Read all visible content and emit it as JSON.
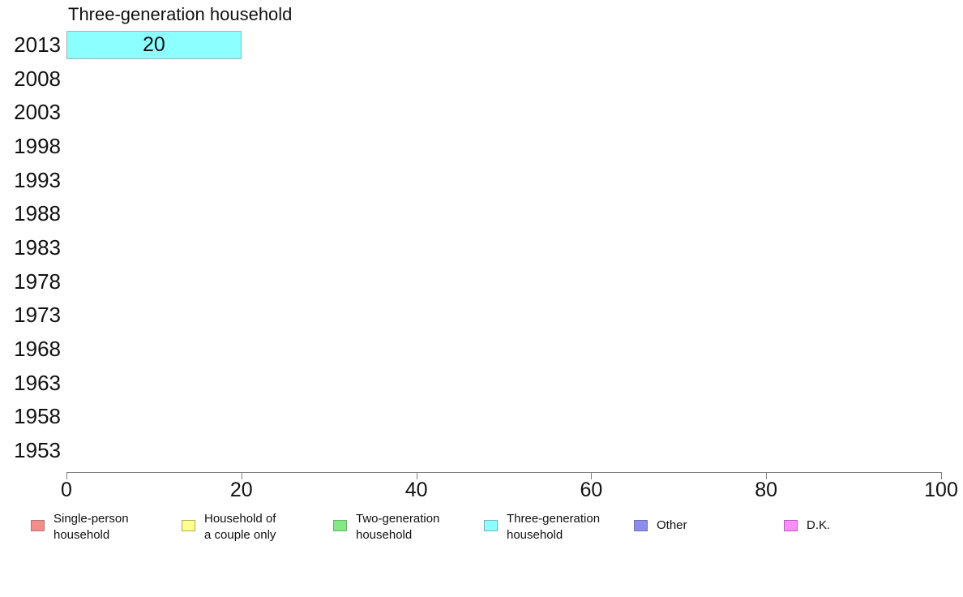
{
  "page": {
    "background": "#ffffff"
  },
  "chart_data": {
    "type": "bar",
    "orientation": "horizontal",
    "title": "Three-generation household",
    "categories": [
      "2013",
      "2008",
      "2003",
      "1998",
      "1993",
      "1988",
      "1983",
      "1978",
      "1973",
      "1968",
      "1963",
      "1958",
      "1953"
    ],
    "series": [
      {
        "name": "Three-generation household",
        "color": "#8cffff",
        "border_color": "#9fb3b6",
        "values": [
          20,
          null,
          null,
          null,
          null,
          null,
          null,
          null,
          null,
          null,
          null,
          null,
          null
        ]
      }
    ],
    "bar_value_labels": [
      "20"
    ],
    "xlabel": "",
    "ylabel": "",
    "xlim": [
      0,
      100
    ],
    "xticks": [
      0,
      20,
      40,
      60,
      80,
      100
    ],
    "xtick_labels": [
      "0",
      "20",
      "40",
      "60",
      "80",
      "100"
    ],
    "grid": false,
    "legend_position": "bottom",
    "legend": [
      {
        "label": "Single-person household",
        "lines": [
          "Single-person",
          "household"
        ],
        "fill": "#f58c8c",
        "border": "#ad7575"
      },
      {
        "label": "Household of a couple only",
        "lines": [
          "Household of",
          "a couple only"
        ],
        "fill": "#ffff8c",
        "border": "#adad62"
      },
      {
        "label": "Two-generation household",
        "lines": [
          "Two-generation",
          "household"
        ],
        "fill": "#84e884",
        "border": "#6fad6f"
      },
      {
        "label": "Three-generation household",
        "lines": [
          "Three-generation",
          "household"
        ],
        "fill": "#8cffff",
        "border": "#79afba"
      },
      {
        "label": "Other",
        "lines": [
          "Other"
        ],
        "fill": "#8c8cee",
        "border": "#6f6fad"
      },
      {
        "label": "D.K.",
        "lines": [
          "D.K."
        ],
        "fill": "#ff8cff",
        "border": "#ad62ad"
      }
    ]
  }
}
